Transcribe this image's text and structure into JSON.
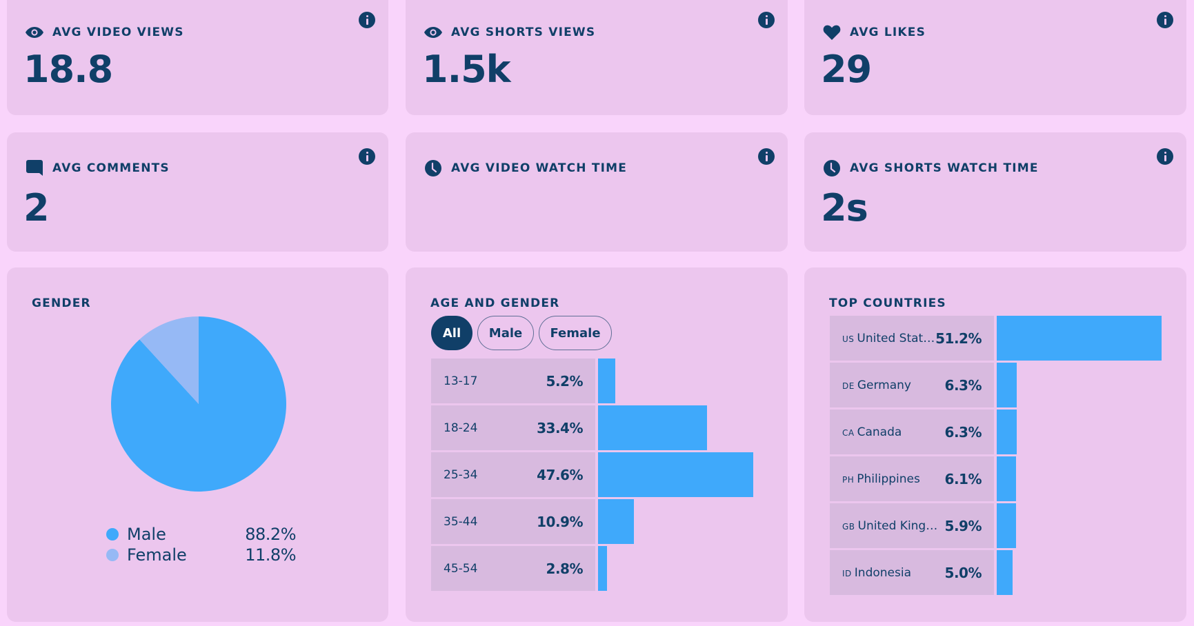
{
  "stats": [
    {
      "label": "AVG VIDEO VIEWS",
      "value": "18.8",
      "icon": "eye-icon"
    },
    {
      "label": "AVG SHORTS VIEWS",
      "value": "1.5k",
      "icon": "eye-icon"
    },
    {
      "label": "AVG LIKES",
      "value": "29",
      "icon": "heart-icon"
    },
    {
      "label": "AVG COMMENTS",
      "value": "2",
      "icon": "comment-icon"
    },
    {
      "label": "AVG VIDEO WATCH TIME",
      "value": "",
      "icon": "clock-icon"
    },
    {
      "label": "AVG SHORTS WATCH TIME",
      "value": "2s",
      "icon": "clock-icon"
    }
  ],
  "gender": {
    "title": "GENDER",
    "items": [
      {
        "name": "Male",
        "value": "88.2%",
        "pct": 88.2,
        "color": "#3fa9fb"
      },
      {
        "name": "Female",
        "value": "11.8%",
        "pct": 11.8,
        "color": "#96b9f5"
      }
    ]
  },
  "age_gender": {
    "title": "AGE AND GENDER",
    "filters": [
      "All",
      "Male",
      "Female"
    ],
    "active_filter": "All",
    "rows": [
      {
        "label": "13-17",
        "value": "5.2%",
        "pct": 5.2
      },
      {
        "label": "18-24",
        "value": "33.4%",
        "pct": 33.4
      },
      {
        "label": "25-34",
        "value": "47.6%",
        "pct": 47.6
      },
      {
        "label": "35-44",
        "value": "10.9%",
        "pct": 10.9
      },
      {
        "label": "45-54",
        "value": "2.8%",
        "pct": 2.8
      }
    ]
  },
  "countries": {
    "title": "TOP COUNTRIES",
    "rows": [
      {
        "code": "US",
        "name": "United States",
        "value": "51.2%",
        "pct": 51.2
      },
      {
        "code": "DE",
        "name": "Germany",
        "value": "6.3%",
        "pct": 6.3
      },
      {
        "code": "CA",
        "name": "Canada",
        "value": "6.3%",
        "pct": 6.3
      },
      {
        "code": "PH",
        "name": "Philippines",
        "value": "6.1%",
        "pct": 6.1
      },
      {
        "code": "GB",
        "name": "United Kingdom",
        "value": "5.9%",
        "pct": 5.9
      },
      {
        "code": "ID",
        "name": "Indonesia",
        "value": "5.0%",
        "pct": 5.0
      }
    ]
  },
  "colors": {
    "accent": "#3fa9fb",
    "accent_light": "#96b9f5",
    "navy": "#103f68",
    "card": "#ecc6ee",
    "background": "#f9d4fb"
  }
}
